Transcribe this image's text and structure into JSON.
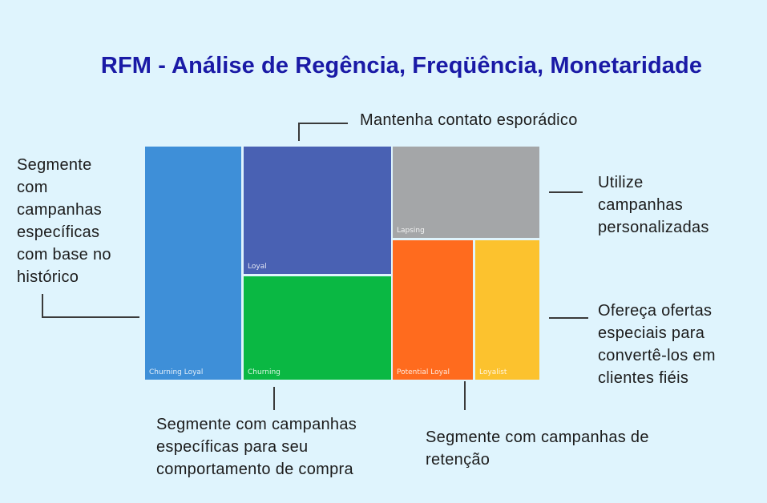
{
  "title": "RFM - Análise de Regência, Freqüência, Monetaridade",
  "segments": {
    "churning_loyal": {
      "label": "Churning Loyal",
      "color": "#3e8fd8"
    },
    "loyal": {
      "label": "Loyal",
      "color": "#4961b3"
    },
    "churning": {
      "label": "Churning",
      "color": "#0ab843"
    },
    "lapsing": {
      "label": "Lapsing",
      "color": "#a4a6a8"
    },
    "potential_loyal": {
      "label": "Potential Loyal",
      "color": "#ff6b1e"
    },
    "loyalist": {
      "label": "Loyalist",
      "color": "#fcc22e"
    }
  },
  "notes": {
    "loyal": "Mantenha contato esporádico",
    "churning_loyal": "Segmente com campanhas específicas com base no histórico",
    "lapsing": "Utilize campanhas personalizadas",
    "loyalist": "Ofereça ofertas especiais para convertê-los em clientes fiéis",
    "churning": "Segmente com campanhas específicas para seu comportamento de compra",
    "potential_loyal": "Segmente com campanhas de retenção"
  }
}
